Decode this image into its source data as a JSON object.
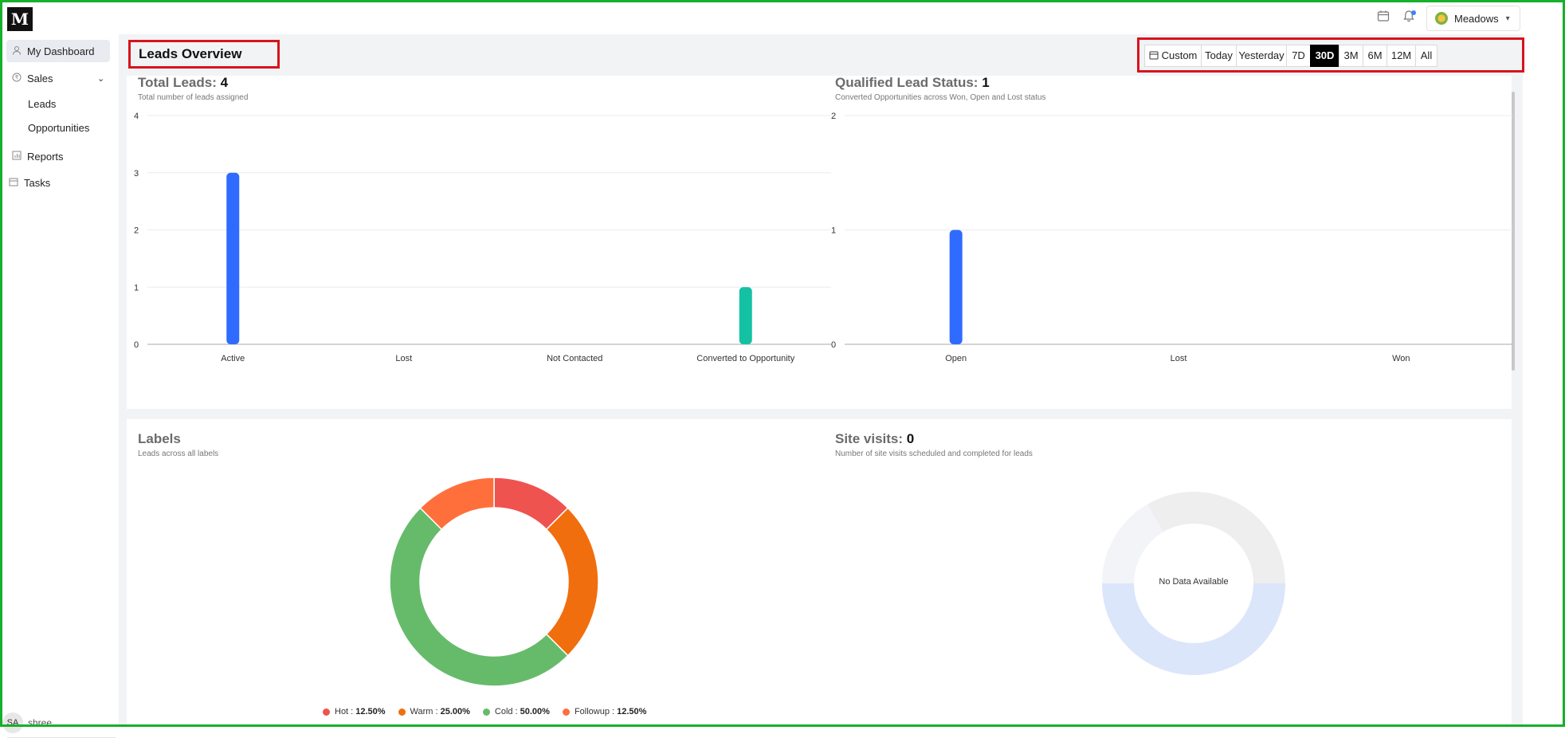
{
  "header": {
    "logo_text": "M",
    "calendar_icon": "calendar-icon",
    "bell_icon": "bell-icon",
    "user_name": "Meadows"
  },
  "sidebar": {
    "items": [
      {
        "label": "My Dashboard",
        "icon": "user-icon",
        "active": true
      },
      {
        "label": "Sales",
        "icon": "coin-icon",
        "expanded": true
      },
      {
        "label": "Leads"
      },
      {
        "label": "Opportunities"
      },
      {
        "label": "Reports",
        "icon": "chart-icon"
      },
      {
        "label": "Tasks",
        "icon": "calendar-icon"
      }
    ],
    "user_initials": "SA",
    "user_name": "shree"
  },
  "page": {
    "title": "Leads Overview"
  },
  "date_filter": {
    "options": [
      "Custom",
      "Today",
      "Yesterday",
      "7D",
      "30D",
      "3M",
      "6M",
      "12M",
      "All"
    ],
    "selected": "30D"
  },
  "total_leads_card": {
    "title": "Total Leads:",
    "count": "4",
    "subtitle": "Total number of leads assigned"
  },
  "qualified_card": {
    "title": "Qualified Lead Status:",
    "count": "1",
    "subtitle": "Converted Opportunities across Won, Open and Lost status"
  },
  "labels_card": {
    "title": "Labels",
    "subtitle": "Leads across all labels"
  },
  "site_visits_card": {
    "title": "Site visits:",
    "count": "0",
    "subtitle": "Number of site visits scheduled and completed for leads",
    "empty_text": "No Data Available"
  },
  "chart_data": [
    {
      "type": "bar",
      "categories": [
        "Active",
        "Lost",
        "Not Contacted",
        "Converted to Opportunity"
      ],
      "values": [
        3,
        0,
        0,
        1
      ],
      "colors": [
        "#2f6bff",
        "#2f6bff",
        "#2f6bff",
        "#14c2a3"
      ],
      "ylim": [
        0,
        4
      ],
      "yticks": [
        "0",
        "1",
        "2",
        "3",
        "4"
      ],
      "grid": true
    },
    {
      "type": "bar",
      "categories": [
        "Open",
        "Lost",
        "Won"
      ],
      "values": [
        1,
        0,
        0
      ],
      "colors": [
        "#2f6bff",
        "#2f6bff",
        "#2f6bff"
      ],
      "ylim": [
        0,
        2
      ],
      "yticks": [
        "0",
        "1",
        "2"
      ],
      "grid": true
    },
    {
      "type": "pie",
      "donut": true,
      "slices": [
        {
          "label": "Hot",
          "value": 12.5,
          "display": "12.50%",
          "color": "#ee5350"
        },
        {
          "label": "Warm",
          "value": 25.0,
          "display": "25.00%",
          "color": "#f16e0e"
        },
        {
          "label": "Cold",
          "value": 50.0,
          "display": "50.00%",
          "color": "#66bb6a"
        },
        {
          "label": "Followup",
          "value": 12.5,
          "display": "12.50%",
          "color": "#ff6f3c"
        }
      ],
      "legend_position": "bottom"
    }
  ]
}
